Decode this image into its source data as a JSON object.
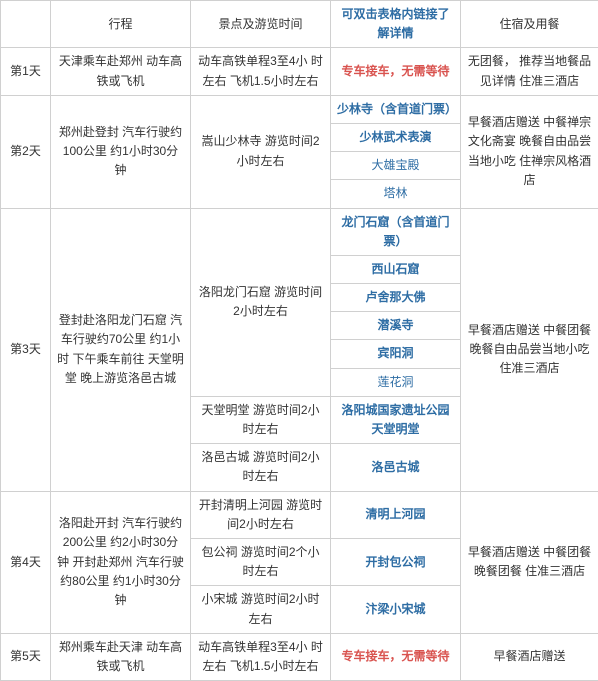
{
  "header": {
    "c1": "",
    "c2": "行程",
    "c3": "景点及游览时间",
    "c4": "可双击表格内链接了解详情",
    "c5": "住宿及用餐"
  },
  "d1": {
    "day": "第1天",
    "route": "天津乘车赴郑州\n动车高铁或飞机",
    "time": "动车高铁单程3至4小\n时左右\n飞机1.5小时左右",
    "link": "专车接车，无需等待",
    "meal": "无团餐，\n推荐当地餐品见详情\n住准三酒店"
  },
  "d2": {
    "day": "第2天",
    "route": "郑州赴登封\n汽车行驶约100公里\n约1小时30分钟",
    "time": "嵩山少林寺\n游览时间2小时左右",
    "links": [
      "少林寺（含首道门票）",
      "少林武术表演",
      "大雄宝殿",
      "塔林"
    ],
    "meal": "早餐酒店赠送\n中餐禅宗文化斋宴\n晚餐自由品尝当地小吃\n住禅宗风格酒店"
  },
  "d3": {
    "day": "第3天",
    "route": "登封赴洛阳龙门石窟\n汽车行驶约70公里\n约1小时\n下午乘车前往 天堂明堂\n晚上游览洛邑古城",
    "t1": "洛阳龙门石窟\n游览时间2小时左右",
    "l1": [
      "龙门石窟（含首道门票）",
      "西山石窟",
      "卢舍那大佛",
      "潜溪寺",
      "宾阳洞",
      "莲花洞"
    ],
    "t2": "天堂明堂\n游览时间2小时左右",
    "l2": "洛阳城国家遗址公园天堂明堂",
    "t3": "洛邑古城\n游览时间2小时左右",
    "l3": "洛邑古城",
    "meal": "早餐酒店赠送\n中餐团餐\n晚餐自由品尝当地小吃\n住准三酒店"
  },
  "d4": {
    "day": "第4天",
    "route": "洛阳赴开封\n汽车行驶约200公里\n约2小时30分钟\n开封赴郑州\n汽车行驶约80公里\n约1小时30分钟",
    "t1": "开封清明上河园\n游览时间2小时左右",
    "l1": "清明上河园",
    "t2": "包公祠\n游览时间2个小时左右",
    "l2": "开封包公祠",
    "t3": "小宋城\n游览时间2小时左右",
    "l3": "汴梁小宋城",
    "meal": "早餐酒店赠送\n中餐团餐\n晚餐团餐\n住准三酒店"
  },
  "d5": {
    "day": "第5天",
    "route": "郑州乘车赴天津\n动车高铁或飞机",
    "time": "动车高铁单程3至4小\n时左右\n飞机1.5小时左右",
    "link": "专车接车，无需等待",
    "meal": "早餐酒店赠送"
  }
}
